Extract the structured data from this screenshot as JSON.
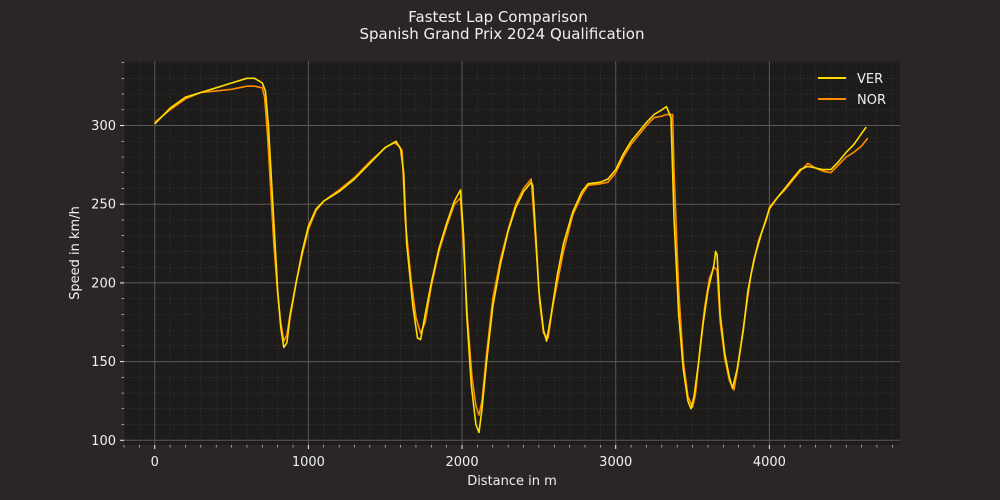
{
  "chart_data": {
    "type": "line",
    "title": "Fastest Lap Comparison",
    "subtitle": "Spanish Grand Prix 2024 Qualification",
    "xlabel": "Distance in m",
    "ylabel": "Speed in km/h",
    "xlim": [
      -200,
      4850
    ],
    "ylim": [
      97,
      341
    ],
    "x_ticks": [
      0,
      1000,
      2000,
      3000,
      4000
    ],
    "y_ticks": [
      100,
      150,
      200,
      250,
      300
    ],
    "x_minor_step": 100,
    "y_minor_step": 10,
    "grid": true,
    "legend_position": "top-right",
    "colors": {
      "background": "#292625",
      "plot_background": "#1e1c1b",
      "text": "#f0f0f0",
      "grid_major": "#5a5856",
      "grid_minor": "#3a3837"
    },
    "series": [
      {
        "name": "VER",
        "color": "#ffdd00",
        "points": [
          [
            0,
            301
          ],
          [
            50,
            306
          ],
          [
            100,
            311
          ],
          [
            200,
            318
          ],
          [
            300,
            321
          ],
          [
            400,
            324
          ],
          [
            500,
            327
          ],
          [
            600,
            330
          ],
          [
            650,
            330
          ],
          [
            700,
            327
          ],
          [
            720,
            322
          ],
          [
            740,
            300
          ],
          [
            780,
            230
          ],
          [
            800,
            195
          ],
          [
            820,
            172
          ],
          [
            840,
            159
          ],
          [
            860,
            162
          ],
          [
            880,
            178
          ],
          [
            920,
            200
          ],
          [
            960,
            220
          ],
          [
            1000,
            236
          ],
          [
            1050,
            247
          ],
          [
            1100,
            252
          ],
          [
            1200,
            258
          ],
          [
            1300,
            266
          ],
          [
            1400,
            276
          ],
          [
            1500,
            286
          ],
          [
            1570,
            290
          ],
          [
            1600,
            285
          ],
          [
            1620,
            270
          ],
          [
            1640,
            225
          ],
          [
            1680,
            185
          ],
          [
            1710,
            165
          ],
          [
            1730,
            164
          ],
          [
            1760,
            180
          ],
          [
            1800,
            200
          ],
          [
            1850,
            222
          ],
          [
            1900,
            238
          ],
          [
            1950,
            252
          ],
          [
            1990,
            259
          ],
          [
            2010,
            230
          ],
          [
            2030,
            180
          ],
          [
            2060,
            135
          ],
          [
            2090,
            110
          ],
          [
            2110,
            105
          ],
          [
            2130,
            120
          ],
          [
            2160,
            150
          ],
          [
            2200,
            185
          ],
          [
            2250,
            212
          ],
          [
            2300,
            233
          ],
          [
            2350,
            248
          ],
          [
            2400,
            258
          ],
          [
            2450,
            264
          ],
          [
            2460,
            262
          ],
          [
            2480,
            230
          ],
          [
            2500,
            195
          ],
          [
            2530,
            170
          ],
          [
            2550,
            163
          ],
          [
            2580,
            180
          ],
          [
            2620,
            205
          ],
          [
            2660,
            225
          ],
          [
            2720,
            245
          ],
          [
            2780,
            258
          ],
          [
            2820,
            263
          ],
          [
            2900,
            264
          ],
          [
            2950,
            266
          ],
          [
            3000,
            272
          ],
          [
            3050,
            282
          ],
          [
            3100,
            290
          ],
          [
            3200,
            302
          ],
          [
            3250,
            307
          ],
          [
            3300,
            310
          ],
          [
            3330,
            312
          ],
          [
            3360,
            305
          ],
          [
            3380,
            240
          ],
          [
            3410,
            180
          ],
          [
            3440,
            145
          ],
          [
            3470,
            125
          ],
          [
            3490,
            120
          ],
          [
            3510,
            128
          ],
          [
            3540,
            150
          ],
          [
            3570,
            175
          ],
          [
            3600,
            195
          ],
          [
            3640,
            212
          ],
          [
            3650,
            220
          ],
          [
            3660,
            218
          ],
          [
            3680,
            180
          ],
          [
            3710,
            155
          ],
          [
            3740,
            140
          ],
          [
            3760,
            133
          ],
          [
            3790,
            145
          ],
          [
            3830,
            170
          ],
          [
            3860,
            195
          ],
          [
            3900,
            215
          ],
          [
            3950,
            232
          ],
          [
            4000,
            247
          ],
          [
            4050,
            254
          ],
          [
            4100,
            260
          ],
          [
            4150,
            266
          ],
          [
            4200,
            272
          ],
          [
            4250,
            274
          ],
          [
            4300,
            273
          ],
          [
            4350,
            272
          ],
          [
            4400,
            272
          ],
          [
            4450,
            277
          ],
          [
            4500,
            283
          ],
          [
            4550,
            288
          ],
          [
            4600,
            295
          ],
          [
            4630,
            299
          ]
        ]
      },
      {
        "name": "NOR",
        "color": "#ff8c00",
        "points": [
          [
            0,
            302
          ],
          [
            50,
            306
          ],
          [
            100,
            310
          ],
          [
            200,
            317
          ],
          [
            300,
            321
          ],
          [
            400,
            322
          ],
          [
            500,
            323
          ],
          [
            600,
            325
          ],
          [
            650,
            325
          ],
          [
            700,
            324
          ],
          [
            715,
            318
          ],
          [
            735,
            292
          ],
          [
            775,
            225
          ],
          [
            800,
            193
          ],
          [
            820,
            175
          ],
          [
            840,
            163
          ],
          [
            860,
            167
          ],
          [
            880,
            180
          ],
          [
            920,
            200
          ],
          [
            960,
            218
          ],
          [
            1000,
            234
          ],
          [
            1050,
            246
          ],
          [
            1100,
            252
          ],
          [
            1200,
            259
          ],
          [
            1300,
            267
          ],
          [
            1400,
            277
          ],
          [
            1500,
            286
          ],
          [
            1560,
            289
          ],
          [
            1590,
            287
          ],
          [
            1610,
            284
          ],
          [
            1630,
            240
          ],
          [
            1670,
            200
          ],
          [
            1700,
            178
          ],
          [
            1730,
            168
          ],
          [
            1760,
            175
          ],
          [
            1800,
            198
          ],
          [
            1850,
            220
          ],
          [
            1900,
            236
          ],
          [
            1950,
            250
          ],
          [
            1990,
            254
          ],
          [
            2010,
            222
          ],
          [
            2035,
            178
          ],
          [
            2065,
            140
          ],
          [
            2090,
            122
          ],
          [
            2110,
            116
          ],
          [
            2130,
            125
          ],
          [
            2160,
            155
          ],
          [
            2200,
            190
          ],
          [
            2250,
            215
          ],
          [
            2300,
            234
          ],
          [
            2350,
            250
          ],
          [
            2400,
            260
          ],
          [
            2450,
            266
          ],
          [
            2480,
            225
          ],
          [
            2505,
            188
          ],
          [
            2530,
            168
          ],
          [
            2560,
            165
          ],
          [
            2590,
            185
          ],
          [
            2620,
            200
          ],
          [
            2660,
            220
          ],
          [
            2720,
            243
          ],
          [
            2780,
            256
          ],
          [
            2820,
            262
          ],
          [
            2900,
            263
          ],
          [
            2950,
            264
          ],
          [
            3000,
            270
          ],
          [
            3050,
            280
          ],
          [
            3100,
            288
          ],
          [
            3200,
            300
          ],
          [
            3250,
            305
          ],
          [
            3300,
            306
          ],
          [
            3330,
            307
          ],
          [
            3370,
            307
          ],
          [
            3380,
            270
          ],
          [
            3410,
            195
          ],
          [
            3440,
            150
          ],
          [
            3470,
            128
          ],
          [
            3500,
            121
          ],
          [
            3520,
            130
          ],
          [
            3550,
            160
          ],
          [
            3580,
            185
          ],
          [
            3610,
            203
          ],
          [
            3640,
            210
          ],
          [
            3660,
            208
          ],
          [
            3680,
            175
          ],
          [
            3710,
            152
          ],
          [
            3740,
            138
          ],
          [
            3770,
            132
          ],
          [
            3800,
            150
          ],
          [
            3840,
            178
          ],
          [
            3880,
            205
          ],
          [
            3930,
            227
          ],
          [
            3980,
            240
          ],
          [
            4000,
            248
          ],
          [
            4050,
            254
          ],
          [
            4100,
            259
          ],
          [
            4150,
            265
          ],
          [
            4200,
            271
          ],
          [
            4250,
            276
          ],
          [
            4300,
            273
          ],
          [
            4350,
            271
          ],
          [
            4400,
            270
          ],
          [
            4450,
            275
          ],
          [
            4500,
            280
          ],
          [
            4550,
            283
          ],
          [
            4600,
            287
          ],
          [
            4640,
            292
          ]
        ]
      }
    ]
  }
}
